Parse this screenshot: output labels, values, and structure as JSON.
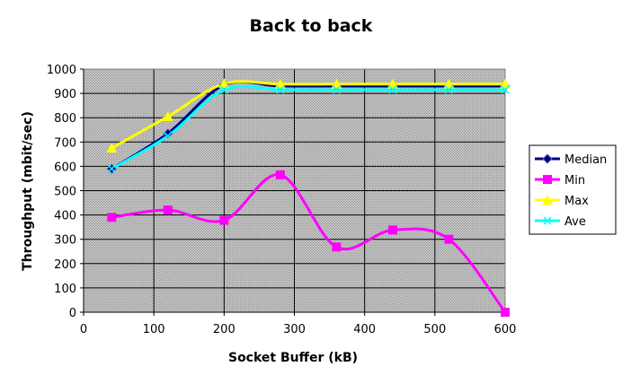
{
  "chart_data": {
    "type": "line",
    "title": "Back to back",
    "xlabel": "Socket Buffer (kB)",
    "ylabel": "Throughput (mbit/sec)",
    "xlim": [
      0,
      600
    ],
    "ylim": [
      0,
      1000
    ],
    "x_ticks": [
      "0",
      "100",
      "200",
      "300",
      "400",
      "500",
      "600"
    ],
    "y_ticks": [
      "0",
      "100",
      "200",
      "300",
      "400",
      "500",
      "600",
      "700",
      "800",
      "900",
      "1000"
    ],
    "grid": true,
    "smoothed": true,
    "legend_position": "right",
    "plot_background": "hatched-gray",
    "series": [
      {
        "name": "Median",
        "color": "#000080",
        "marker": "diamond",
        "x": [
          40,
          120,
          200,
          280,
          360,
          440,
          520,
          600
        ],
        "y": [
          590,
          735,
          935,
          930,
          930,
          930,
          930,
          930
        ]
      },
      {
        "name": "Min",
        "color": "#ff00ff",
        "marker": "square",
        "x": [
          40,
          120,
          200,
          280,
          360,
          440,
          520,
          600
        ],
        "y": [
          390,
          420,
          378,
          565,
          268,
          338,
          300,
          0
        ]
      },
      {
        "name": "Max",
        "color": "#ffff00",
        "marker": "triangle",
        "x": [
          40,
          120,
          200,
          280,
          360,
          440,
          520,
          600
        ],
        "y": [
          675,
          805,
          940,
          938,
          938,
          938,
          938,
          938
        ]
      },
      {
        "name": "Ave",
        "color": "#00ffff",
        "marker": "x",
        "x": [
          40,
          120,
          200,
          280,
          360,
          440,
          520,
          600
        ],
        "y": [
          590,
          725,
          915,
          915,
          915,
          915,
          915,
          915
        ]
      }
    ]
  }
}
